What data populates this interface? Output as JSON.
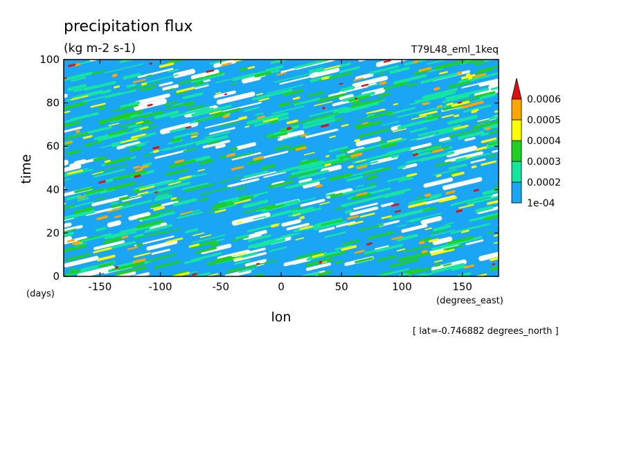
{
  "chart_data": {
    "type": "heatmap",
    "title": "precipitation flux",
    "units": "(kg m-2 s-1)",
    "run_label": "T79L48_eml_1keq",
    "xlabel": "lon",
    "x_units": "(degrees_east)",
    "ylabel": "time",
    "y_units": "(days)",
    "slice_note": "[ lat=-0.746882 degrees_north ]",
    "xlim": [
      -180,
      180
    ],
    "ylim": [
      0,
      100
    ],
    "x_ticks": [
      -150,
      -100,
      -50,
      0,
      50,
      100,
      150
    ],
    "x_tick_labels": [
      "-150",
      "-100",
      "-50",
      "0",
      "50",
      "100",
      "150"
    ],
    "y_ticks": [
      0,
      20,
      40,
      60,
      80,
      100
    ],
    "y_tick_labels": [
      "0",
      "20",
      "40",
      "60",
      "80",
      "100"
    ],
    "colorbar": {
      "levels": [
        "1e-04",
        "0.0002",
        "0.0003",
        "0.0004",
        "0.0005",
        "0.0006"
      ],
      "colors": [
        "#1aa6f5",
        "#14e6a0",
        "#1fd01f",
        "#ffff00",
        "#ffa500",
        "#e01010"
      ],
      "extend": "max"
    },
    "background_color": "#ffffff"
  }
}
